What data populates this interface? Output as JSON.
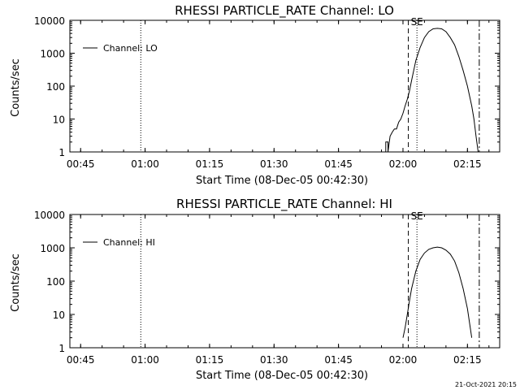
{
  "timestamp": "21-Oct-2021 20:15",
  "chart_data": [
    {
      "type": "line",
      "title": "RHESSI PARTICLE_RATE Channel: LO",
      "xlabel": "Start Time (08-Dec-05 00:42:30)",
      "ylabel": "Counts/sec",
      "x_tick_labels": [
        "00:45",
        "01:00",
        "01:15",
        "01:30",
        "01:45",
        "02:00",
        "02:15"
      ],
      "y_tick_labels": [
        "1",
        "10",
        "100",
        "1000",
        "10000"
      ],
      "y_scale": "log",
      "ylim": [
        1,
        10000
      ],
      "xlim": [
        "00:42:30",
        "02:22:30"
      ],
      "legend": {
        "label": "Channel: LO",
        "position": "top-left"
      },
      "markers": [
        {
          "type": "dotted",
          "time": "00:59:00"
        },
        {
          "type": "dashed",
          "time": "02:01:15"
        },
        {
          "type": "dotted",
          "time": "02:03:15",
          "label": "SE"
        },
        {
          "type": "dashdot",
          "time": "02:17:45"
        }
      ],
      "series": [
        {
          "name": "Channel: LO",
          "x": [
            "01:55:00",
            "01:55:30",
            "01:56:00",
            "01:56:00",
            "01:56:30",
            "01:56:30",
            "01:57:00",
            "01:57:30",
            "01:58:00",
            "01:58:30",
            "01:59:00",
            "01:59:30",
            "02:00:00",
            "02:00:30",
            "02:01:00",
            "02:01:30",
            "02:02:00",
            "02:02:30",
            "02:03:00",
            "02:04:00",
            "02:05:00",
            "02:06:00",
            "02:07:00",
            "02:08:00",
            "02:09:00",
            "02:10:00",
            "02:11:00",
            "02:12:00",
            "02:13:00",
            "02:14:00",
            "02:15:00",
            "02:16:00",
            "02:16:30",
            "02:17:00",
            "02:17:30"
          ],
          "values": [
            1,
            1,
            1,
            2,
            2,
            1,
            3,
            4,
            5,
            5,
            8,
            10,
            15,
            25,
            40,
            70,
            150,
            300,
            600,
            1500,
            3000,
            4500,
            5500,
            5700,
            5500,
            4500,
            3000,
            1800,
            800,
            300,
            100,
            25,
            10,
            3,
            1
          ]
        }
      ]
    },
    {
      "type": "line",
      "title": "RHESSI PARTICLE_RATE Channel: HI",
      "xlabel": "Start Time (08-Dec-05 00:42:30)",
      "ylabel": "Counts/sec",
      "x_tick_labels": [
        "00:45",
        "01:00",
        "01:15",
        "01:30",
        "01:45",
        "02:00",
        "02:15"
      ],
      "y_tick_labels": [
        "1",
        "10",
        "100",
        "1000",
        "10000"
      ],
      "y_scale": "log",
      "ylim": [
        1,
        10000
      ],
      "xlim": [
        "00:42:30",
        "02:22:30"
      ],
      "legend": {
        "label": "Channel: HI",
        "position": "top-left"
      },
      "markers": [
        {
          "type": "dotted",
          "time": "00:59:00"
        },
        {
          "type": "dashed",
          "time": "02:01:15"
        },
        {
          "type": "dotted",
          "time": "02:03:15",
          "label": "SE"
        },
        {
          "type": "dashdot",
          "time": "02:17:45"
        }
      ],
      "series": [
        {
          "name": "Channel: HI",
          "x": [
            "02:00:00",
            "02:00:30",
            "02:01:00",
            "02:01:30",
            "02:02:00",
            "02:03:00",
            "02:04:00",
            "02:05:00",
            "02:06:00",
            "02:07:00",
            "02:08:00",
            "02:09:00",
            "02:10:00",
            "02:11:00",
            "02:12:00",
            "02:13:00",
            "02:14:00",
            "02:15:00",
            "02:16:00"
          ],
          "values": [
            2,
            4,
            10,
            25,
            60,
            200,
            450,
            700,
            900,
            1000,
            1050,
            1000,
            850,
            650,
            400,
            180,
            60,
            15,
            2
          ]
        }
      ]
    }
  ]
}
